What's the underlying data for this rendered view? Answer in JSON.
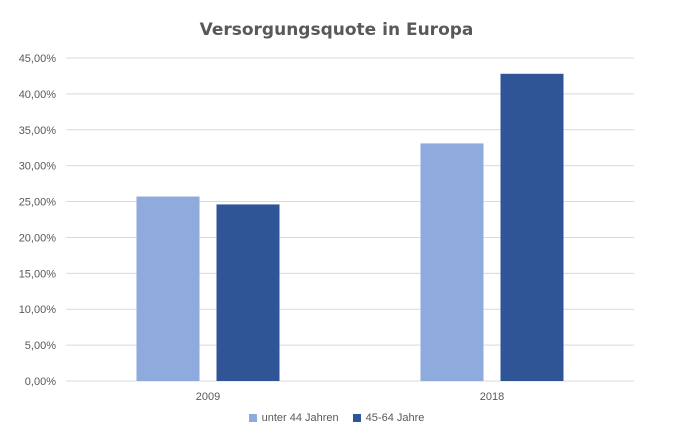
{
  "chart_data": {
    "type": "bar",
    "title": "Versorgungsquote in Europa",
    "categories": [
      "2009",
      "2018"
    ],
    "series": [
      {
        "name": "unter 44 Jahren",
        "values": [
          25.7,
          33.1
        ],
        "color": "#8faadc"
      },
      {
        "name": "45-64 Jahre",
        "values": [
          24.6,
          42.8
        ],
        "color": "#2f5597"
      }
    ],
    "yticks": [
      "0,00%",
      "5,00%",
      "10,00%",
      "15,00%",
      "20,00%",
      "25,00%",
      "30,00%",
      "35,00%",
      "40,00%",
      "45,00%"
    ],
    "ylim": [
      0,
      45
    ],
    "ystep": 5,
    "grid": true,
    "legend_position": "bottom",
    "gridColor": "#d9d9d9"
  }
}
